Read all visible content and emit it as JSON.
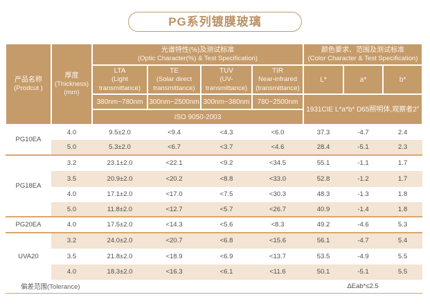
{
  "title": "PG系列镀膜玻璃",
  "colors": {
    "header_bg": "#C59B6A",
    "row_alt_bg": "#F3E4D3",
    "group_separator": "#DBA66B",
    "title_accent": "#BD9164",
    "header_text": "#FBF6EF",
    "body_text": "#4E4E4E"
  },
  "table": {
    "headers": {
      "product": {
        "zh": "产品名称",
        "en": "(Prodcut )"
      },
      "thickness": {
        "zh": "厚度",
        "en": "(Thickness)",
        "unit": "(mm)"
      },
      "optic_group": {
        "zh": "光谱特性(%)及测试标准",
        "en": "(Optic Character(%) & Test Specification)"
      },
      "color_group": {
        "zh": "颜色要求、范围及测试标准",
        "en": "(Color Character & Test Specification)"
      },
      "optic_columns": [
        {
          "name": "LTA",
          "desc": "(Light transmittance)",
          "range": "380nm~780nm"
        },
        {
          "name": "TE",
          "desc": "(Solar direct transmittance)",
          "range": "300nm~2500nm"
        },
        {
          "name": "TUV",
          "desc": "(UV-transmittance)",
          "range": "300nm~380nm"
        },
        {
          "name": "TIR",
          "desc": "Near-infrared (transmittance)",
          "range": "780~2500nm"
        }
      ],
      "color_columns": [
        {
          "label": "L*"
        },
        {
          "label": "a*"
        },
        {
          "label": "b*"
        }
      ],
      "optic_standard": "ISO 9050-2003",
      "color_standard": "1931CIE L*a*b*  D65照明体,观察者2°"
    },
    "groups": [
      {
        "product": "PG10EA",
        "rows": [
          [
            "4.0",
            "9.5±2.0",
            "<9.4",
            "<4.3",
            "<6.0",
            "37.3",
            "-4.7",
            "2.4"
          ],
          [
            "5.0",
            "5.3±2.0",
            "<6.7",
            "<3.7",
            "<4.6",
            "28.4",
            "-5.1",
            "2.3"
          ]
        ]
      },
      {
        "product": "PG18EA",
        "rows": [
          [
            "3.2",
            "23.1±2.0",
            "<22.1",
            "<9.2",
            "<34.5",
            "55.1",
            "-1.1",
            "1.7"
          ],
          [
            "3.5",
            "20.9±2.0",
            "<20.2",
            "<8.8",
            "<33.0",
            "52.8",
            "-1.2",
            "1.7"
          ],
          [
            "4.0",
            "17.1±2.0",
            "<17.0",
            "<7.5",
            "<30.3",
            "48.3",
            "-1.3",
            "1.8"
          ],
          [
            "5.0",
            "11.8±2.0",
            "<12.7",
            "<5.7",
            "<26.7",
            "40.9",
            "-1.4",
            "1.8"
          ]
        ]
      },
      {
        "product": "PG20EA",
        "rows": [
          [
            "4.0",
            "17.5±2.0",
            "<14.3",
            "<5.6",
            "<8.3",
            "49.2",
            "-4.6",
            "5.3"
          ]
        ]
      },
      {
        "product": "UVA20",
        "rows": [
          [
            "3.2",
            "24.0±2.0",
            "<20.7",
            "<6.8",
            "<15.6",
            "56.1",
            "-4.7",
            "5.4"
          ],
          [
            "3.5",
            "21.8±2.0",
            "<18.9",
            "<6.9",
            "<13.7",
            "53.5",
            "-4.9",
            "5.5"
          ],
          [
            "4.0",
            "18.3±2.0",
            "<16.3",
            "<6.1",
            "<11.6",
            "50.1",
            "-5.1",
            "5.5"
          ]
        ]
      }
    ],
    "footer": {
      "label": "偏差范围(Tolerance)",
      "value": "ΔEab*≤2.5"
    }
  }
}
